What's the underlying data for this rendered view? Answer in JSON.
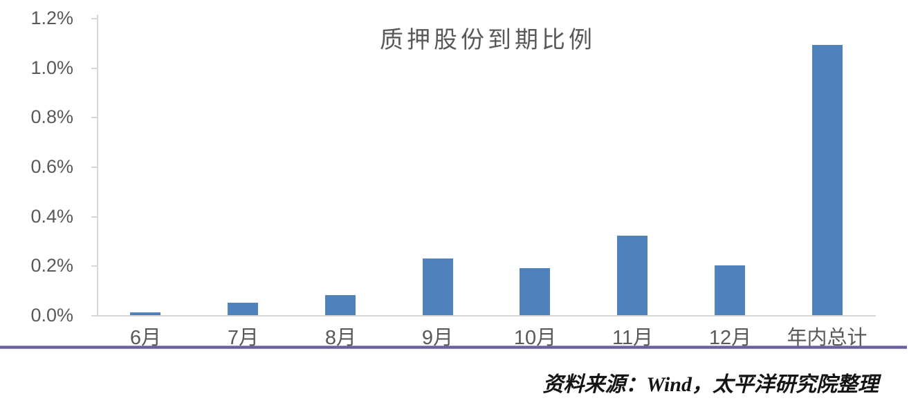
{
  "chart_data": {
    "type": "bar",
    "title": "质押股份到期比例",
    "categories": [
      "6月",
      "7月",
      "8月",
      "9月",
      "10月",
      "11月",
      "12月",
      "年内总计"
    ],
    "values": [
      0.01,
      0.05,
      0.08,
      0.23,
      0.19,
      0.32,
      0.2,
      1.09
    ],
    "unit": "%",
    "xlabel": "",
    "ylabel": "",
    "ylim": [
      0,
      1.2
    ],
    "ytick_step": 0.2,
    "ytick_labels": [
      "0.0%",
      "0.2%",
      "0.4%",
      "0.6%",
      "0.8%",
      "1.0%",
      "1.2%"
    ],
    "grid": false,
    "legend": null,
    "bar_color": "#4F81BD",
    "axis_color": "#D6D6D6",
    "label_color": "#595959"
  },
  "footer": {
    "source_text": "资料来源：Wind，太平洋研究院整理",
    "divider_color": "#66619E"
  }
}
